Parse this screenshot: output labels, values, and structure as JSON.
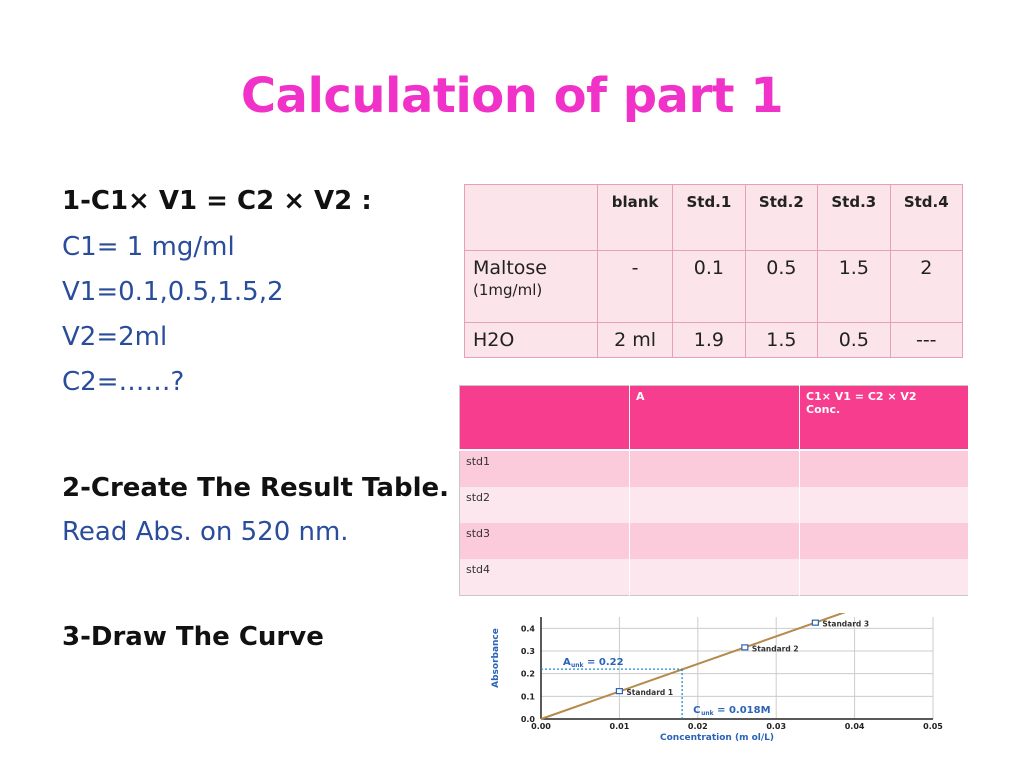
{
  "title": "Calculation of part 1",
  "left": {
    "formula_heading": "1-C1× V1 = C2 × V2 :",
    "c1": "C1= 1 mg/ml",
    "v1": "V1=0.1,0.5,1.5,2",
    "v2": "V2=2ml",
    "c2": "C2=……?",
    "result_heading": "2-Create The Result Table.",
    "read_abs": "Read Abs. on 520 nm.",
    "curve_heading": "3-Draw The Curve"
  },
  "prep_table": {
    "headers": [
      "",
      "blank",
      "Std.1",
      "Std.2",
      "Std.3",
      "Std.4"
    ],
    "rows": [
      {
        "label": "Maltose",
        "sublabel": "(1mg/ml)",
        "values": [
          "-",
          "0.1",
          "0.5",
          "1.5",
          "2"
        ]
      },
      {
        "label": "H2O",
        "sublabel": "",
        "values": [
          "2 ml",
          "1.9",
          "1.5",
          "0.5",
          "---"
        ]
      }
    ]
  },
  "result_table": {
    "headers": [
      "",
      "A",
      "C1× V1 = C2 × V2",
      "Conc."
    ],
    "rows": [
      "std1",
      "std2",
      "std3",
      "std4"
    ]
  },
  "chart_data": {
    "type": "line",
    "xlabel": "Concentration (m ol/L)",
    "ylabel": "Absorbance",
    "x_ticks": [
      "0.00",
      "0.01",
      "0.02",
      "0.03",
      "0.04",
      "0.05"
    ],
    "y_ticks": [
      "0.0",
      "0.1",
      "0.2",
      "0.3",
      "0.4"
    ],
    "xlim": [
      0,
      0.05
    ],
    "ylim": [
      0,
      0.45
    ],
    "series": [
      {
        "x": [
          0.0,
          0.0395
        ],
        "y": [
          0.0,
          0.48
        ]
      }
    ],
    "points": [
      {
        "label": "Standard 1",
        "x": 0.01,
        "y": 0.123
      },
      {
        "label": "Standard 2",
        "x": 0.026,
        "y": 0.316
      },
      {
        "label": "Standard 3",
        "x": 0.035,
        "y": 0.425
      }
    ],
    "annotations": {
      "a_unk": "A",
      "a_unk_sub": "unk",
      "a_unk_value": "= 0.22",
      "c_unk": "C",
      "c_unk_sub": "unk",
      "c_unk_value": "= 0.018M",
      "unknown_point": {
        "x": 0.018,
        "y": 0.22
      }
    },
    "colors": {
      "line": "#b58a4a",
      "axis": "#222222",
      "grid": "#cccccc",
      "label": "#2a63b8",
      "dashed": "#1a8cc8"
    }
  }
}
